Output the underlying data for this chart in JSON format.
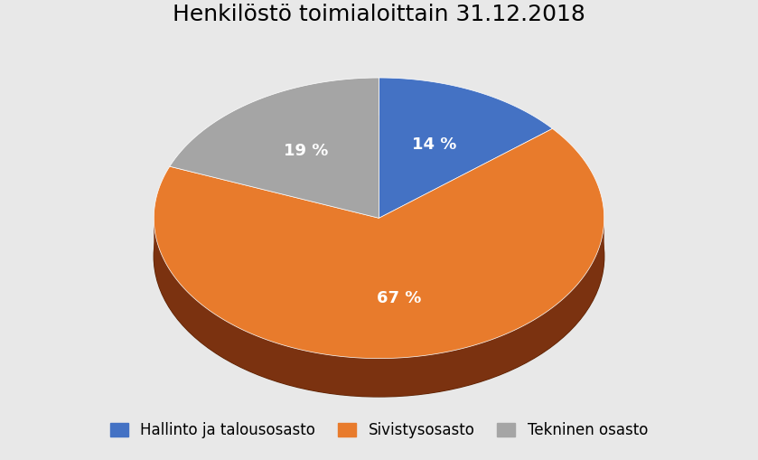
{
  "title": "Henkilöstö toimialoittain 31.12.2018",
  "slices": [
    14,
    67,
    19
  ],
  "labels": [
    "14 %",
    "67 %",
    "19 %"
  ],
  "colors": [
    "#4472C4",
    "#E87B2C",
    "#A5A5A5"
  ],
  "shadow_colors": [
    "#7B3210",
    "#7B3210",
    "#7B3210"
  ],
  "legend_labels": [
    "Hallinto ja talousosasto",
    "Sivistysosasto",
    "Tekninen osasto"
  ],
  "background_color": "#E8E8E8",
  "title_fontsize": 18,
  "label_fontsize": 13,
  "legend_fontsize": 12,
  "startangle": 90
}
